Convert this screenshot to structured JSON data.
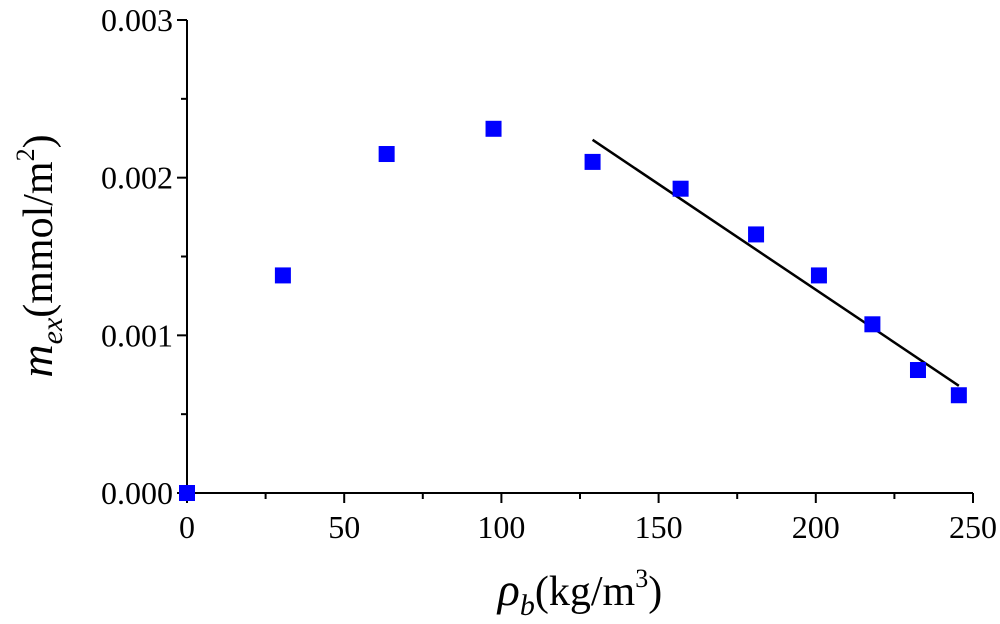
{
  "chart_data": {
    "type": "scatter",
    "title": "",
    "xlabel": {
      "symbol": "ρ",
      "subscript": "b",
      "unit_open": "(kg/m",
      "unit_sup": "3",
      "unit_close": ")"
    },
    "ylabel": {
      "symbol": "m",
      "subscript": "ex",
      "unit_open": "(mmol/m",
      "unit_sup": "2",
      "unit_close": ")"
    },
    "xlim": [
      0,
      250
    ],
    "ylim": [
      0,
      0.003
    ],
    "x_ticks": [
      0,
      50,
      100,
      150,
      200,
      250
    ],
    "x_tick_labels": [
      "0",
      "50",
      "100",
      "150",
      "200",
      "250"
    ],
    "y_ticks": [
      0,
      0.001,
      0.002,
      0.003
    ],
    "y_tick_labels": [
      "0.000",
      "0.001",
      "0.002",
      "0.003"
    ],
    "grid": false,
    "marker_color": "#0000ff",
    "series": [
      {
        "marker": "square",
        "x": [
          0,
          30.5,
          63.5,
          97.5,
          129,
          157,
          181,
          201,
          218,
          232.5,
          245.5
        ],
        "y": [
          0.0,
          0.00138,
          0.00215,
          0.00231,
          0.0021,
          0.00193,
          0.00164,
          0.00138,
          0.00107,
          0.00078,
          0.00062
        ]
      }
    ],
    "fit_line": {
      "x": [
        129,
        245.5
      ],
      "y": [
        0.00224,
        0.00068
      ]
    }
  }
}
